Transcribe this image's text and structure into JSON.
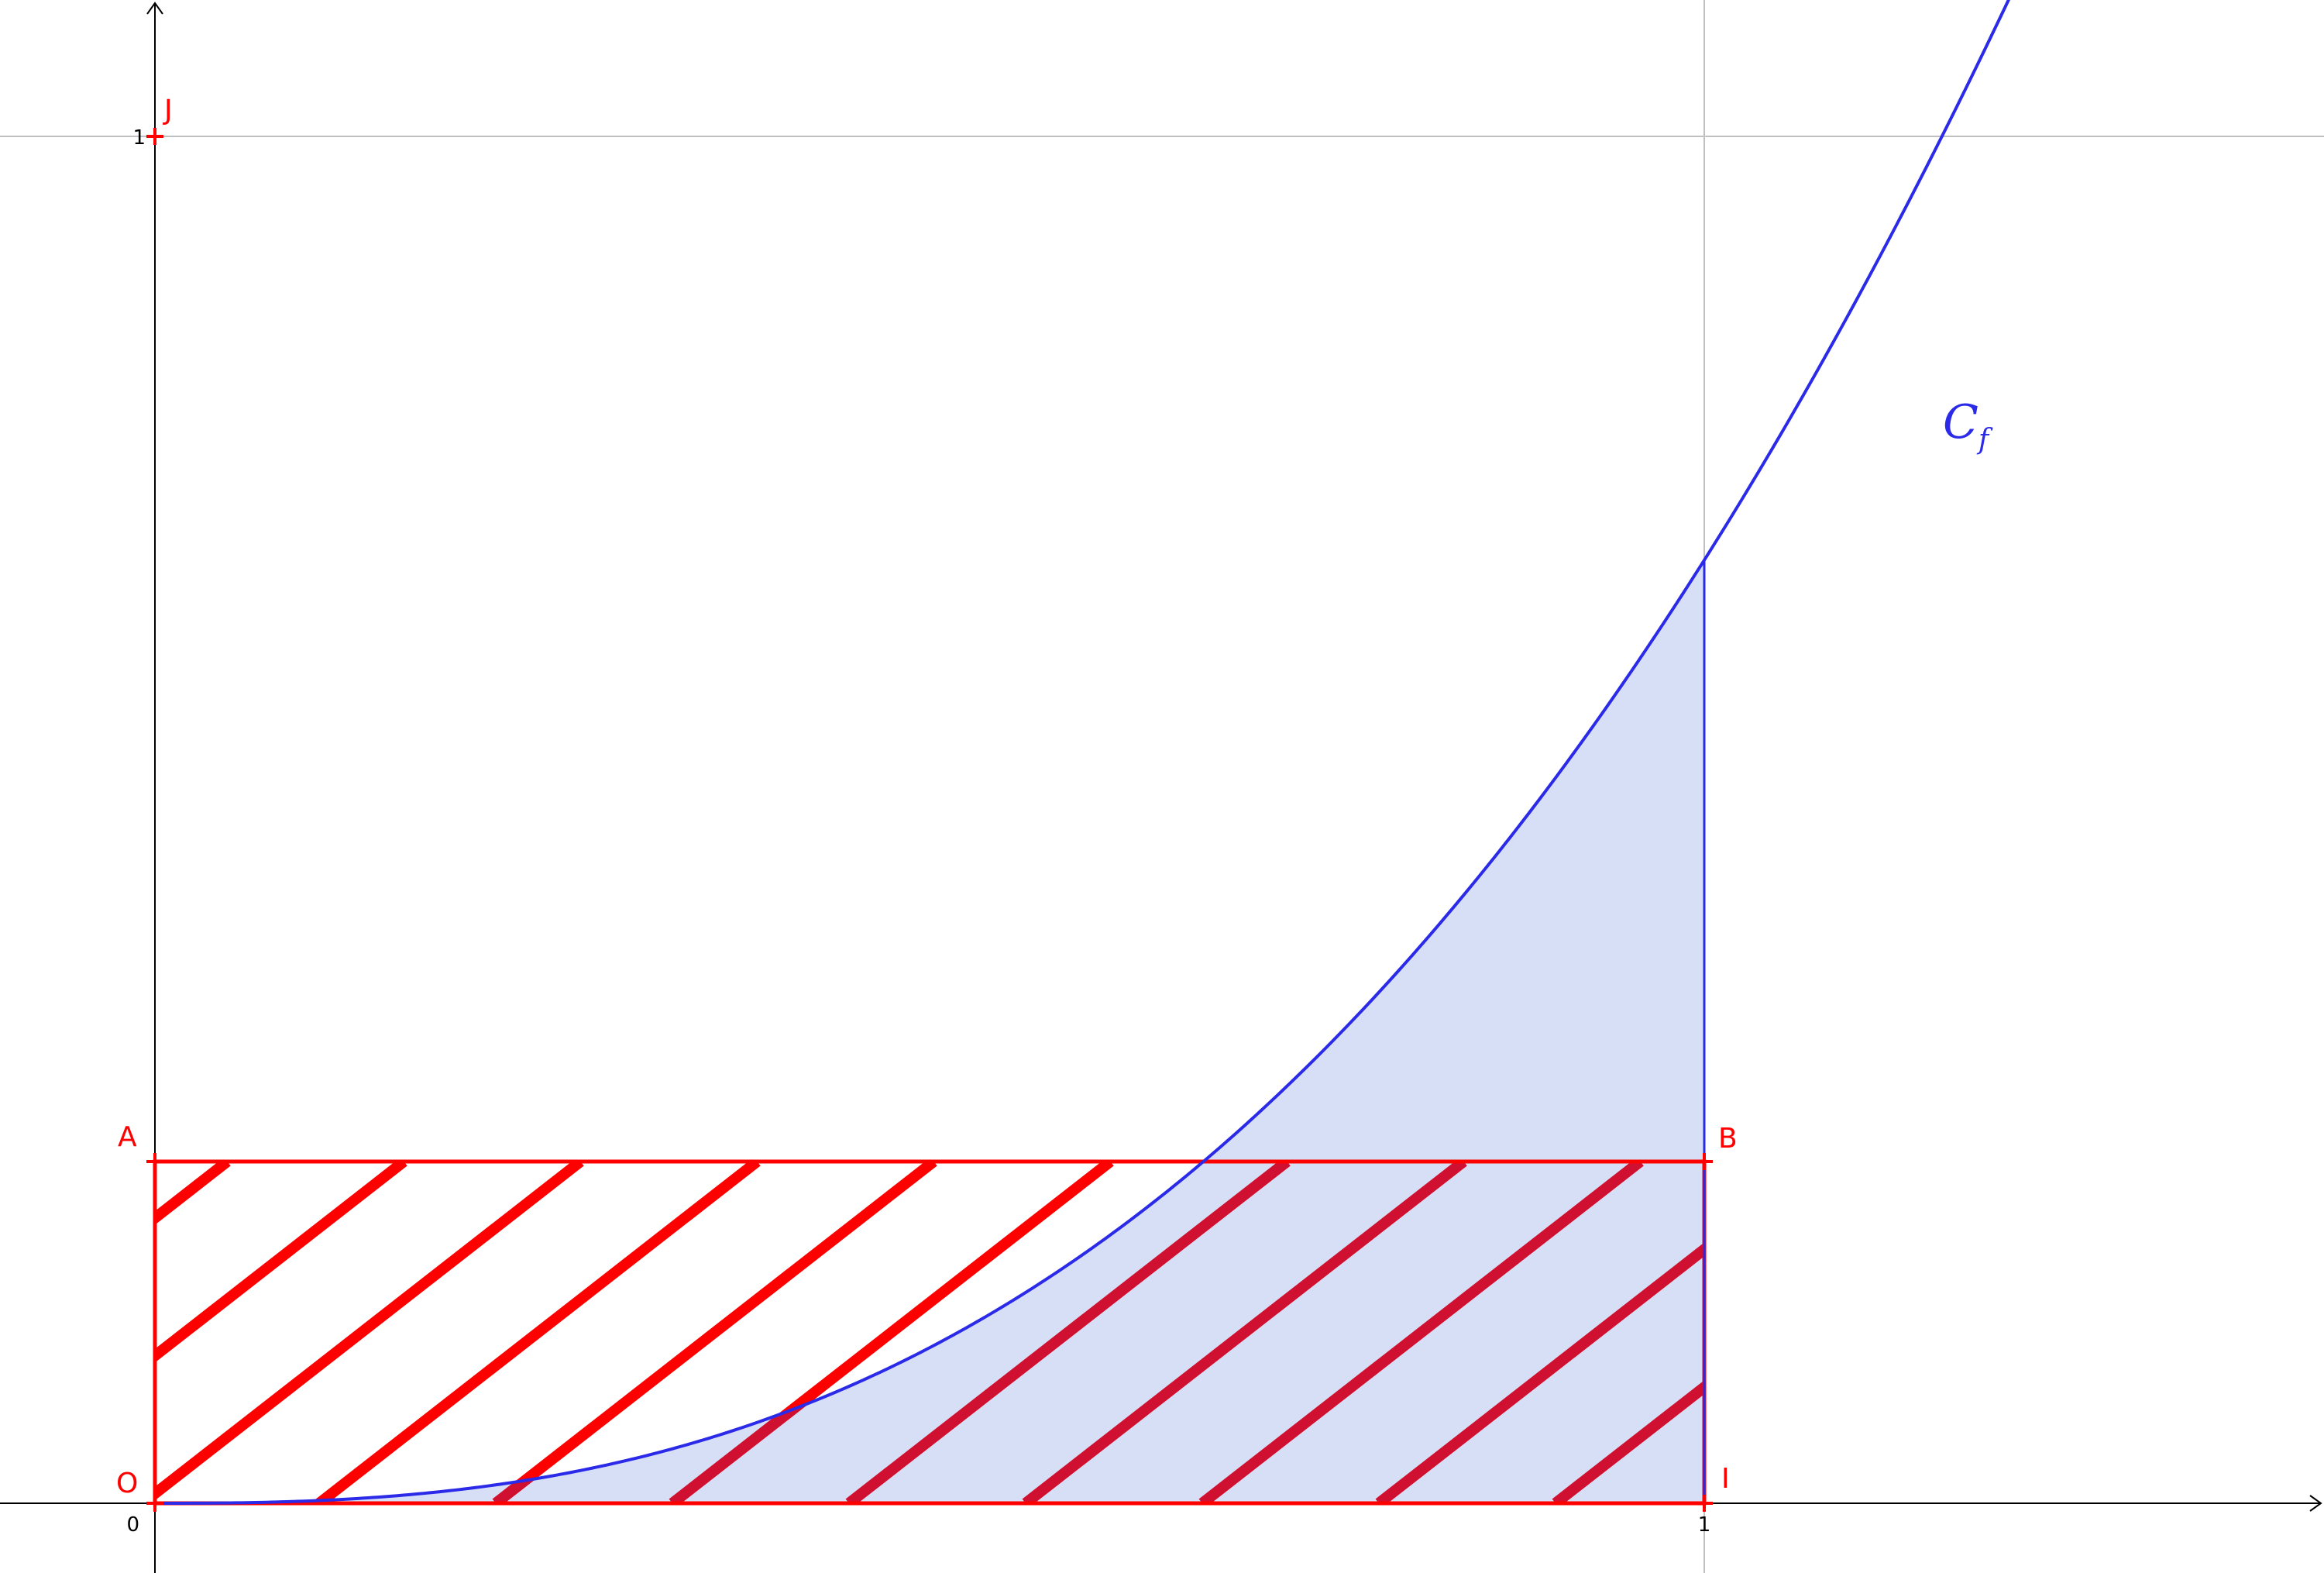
{
  "colors": {
    "axis": "#000000",
    "grid": "#c0c0c0",
    "curve": "#2a2ae8",
    "area_fill": "#d6dff5",
    "rect": "#ff0000",
    "rect_overlap": "#d01030",
    "labels_points": "#ff0000"
  },
  "axes": {
    "x_ticks": [
      {
        "value": 1,
        "label": "1"
      }
    ],
    "y_ticks": [
      {
        "value": 1,
        "label": "1"
      }
    ],
    "origin_label": "0"
  },
  "points": [
    {
      "name": "O",
      "x": 0,
      "y": 0
    },
    {
      "name": "I",
      "x": 1,
      "y": 0
    },
    {
      "name": "J",
      "x": 0,
      "y": 1
    },
    {
      "name": "A",
      "x": 0,
      "y": 0.25
    },
    {
      "name": "B",
      "x": 1,
      "y": 0.25
    }
  ],
  "curve": {
    "label_main": "C",
    "label_sub": "f",
    "x_range": [
      0,
      1.31
    ]
  },
  "shaded_region": {
    "from_x": 0,
    "to_x": 1
  },
  "hatched_rectangle": {
    "corners": [
      "O",
      "I",
      "B",
      "A"
    ],
    "height": 0.25
  }
}
